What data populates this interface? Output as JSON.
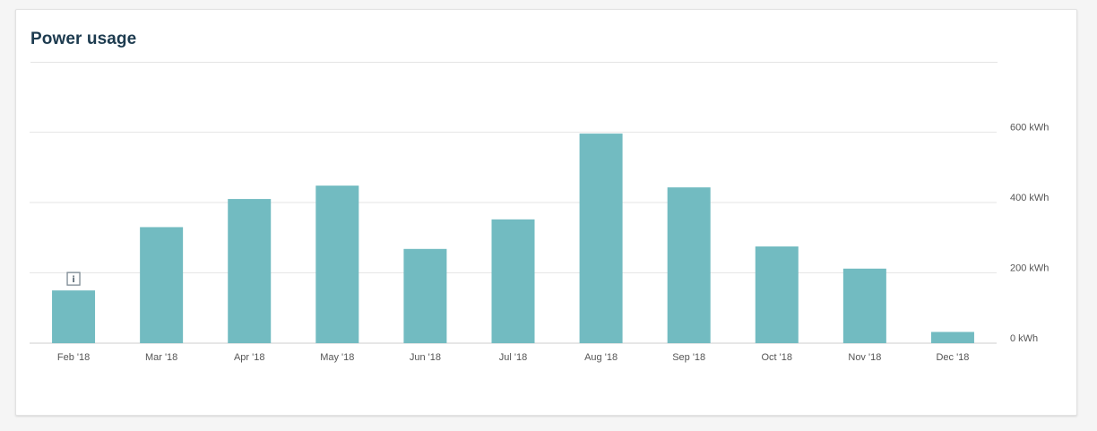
{
  "card": {
    "title": "Power usage"
  },
  "colors": {
    "bar": "#72bbc1",
    "grid": "#e6e6e6",
    "axis": "#cfcfcf",
    "title": "#1d3b4f",
    "text": "#555555"
  },
  "chart_data": {
    "type": "bar",
    "title": "Power usage",
    "xlabel": "",
    "ylabel": "",
    "categories": [
      "Feb '18",
      "Mar '18",
      "Apr '18",
      "May '18",
      "Jun '18",
      "Jul '18",
      "Aug '18",
      "Sep '18",
      "Oct '18",
      "Nov '18",
      "Dec '18"
    ],
    "values": [
      150,
      330,
      410,
      448,
      268,
      352,
      596,
      443,
      275,
      212,
      32
    ],
    "unit": "kWh",
    "yticks": [
      "0 kWh",
      "200 kWh",
      "400 kWh",
      "600 kWh"
    ],
    "ytick_values": [
      0,
      200,
      400,
      600
    ],
    "ylim": [
      0,
      800
    ],
    "grid": true,
    "y_axis_side": "right",
    "annotations": [
      {
        "category": "Feb '18",
        "icon": "info-icon"
      }
    ]
  }
}
